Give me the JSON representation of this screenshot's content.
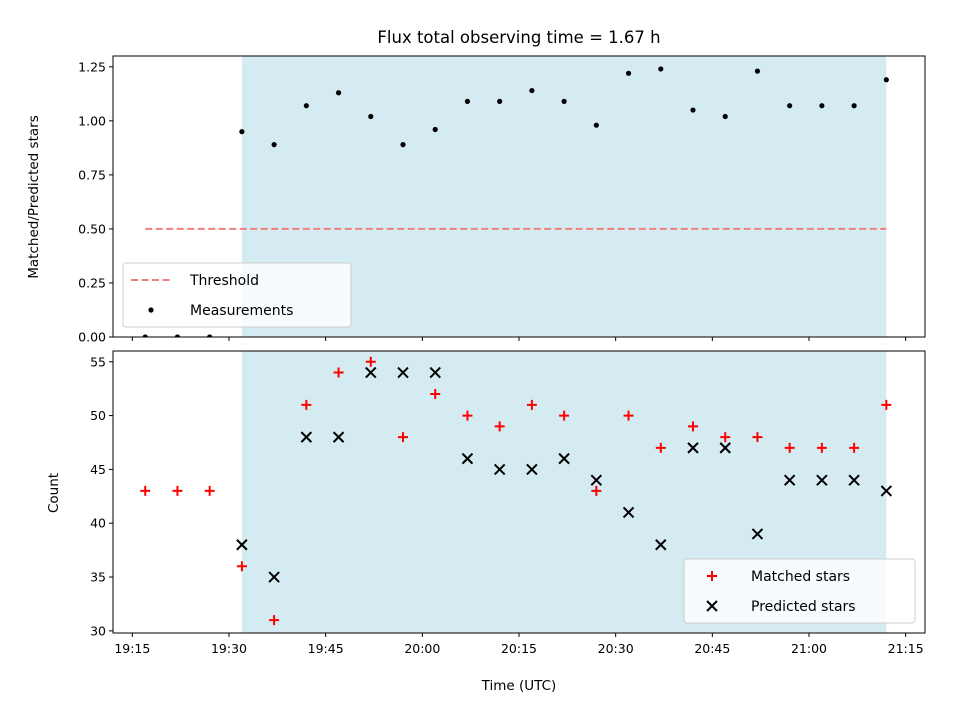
{
  "chart_data": [
    {
      "type": "scatter",
      "title": "Flux total observing time = 1.67 h",
      "xlabel": "",
      "ylabel": "Matched/Predicted stars",
      "xlim": [
        "19:12",
        "21:18"
      ],
      "ylim": [
        0,
        1.3
      ],
      "yticks": [
        "0.00",
        "0.25",
        "0.50",
        "0.75",
        "1.00",
        "1.25"
      ],
      "highlight_span": {
        "from": "19:32",
        "to": "21:12",
        "color": "#add8e6"
      },
      "threshold": {
        "name": "Threshold",
        "value": 0.5,
        "from": "19:17",
        "to": "21:12",
        "color": "#f08080"
      },
      "series": [
        {
          "name": "Measurements",
          "marker": "dot",
          "color": "#000000",
          "x": [
            "19:17",
            "19:22",
            "19:27",
            "19:32",
            "19:37",
            "19:42",
            "19:47",
            "19:52",
            "19:57",
            "20:02",
            "20:07",
            "20:12",
            "20:17",
            "20:22",
            "20:27",
            "20:32",
            "20:37",
            "20:42",
            "20:47",
            "20:52",
            "20:57",
            "21:02",
            "21:07",
            "21:12"
          ],
          "y": [
            0.0,
            0.0,
            0.0,
            0.95,
            0.89,
            1.07,
            1.13,
            1.02,
            0.89,
            0.96,
            1.09,
            1.09,
            1.14,
            1.09,
            0.98,
            1.22,
            1.24,
            1.05,
            1.02,
            1.23,
            1.07,
            1.07,
            1.07,
            1.19
          ]
        }
      ],
      "legend": {
        "position": "lower-left",
        "entries": [
          "Threshold",
          "Measurements"
        ]
      }
    },
    {
      "type": "scatter",
      "title": "",
      "xlabel": "Time (UTC)",
      "ylabel": "Count",
      "xlim": [
        "19:12",
        "21:18"
      ],
      "ylim": [
        29.8,
        56.0
      ],
      "xticks": [
        "19:15",
        "19:30",
        "19:45",
        "20:00",
        "20:15",
        "20:30",
        "20:45",
        "21:00",
        "21:15"
      ],
      "yticks": [
        "30",
        "35",
        "40",
        "45",
        "50",
        "55"
      ],
      "highlight_span": {
        "from": "19:32",
        "to": "21:12",
        "color": "#add8e6"
      },
      "series": [
        {
          "name": "Matched stars",
          "marker": "plus",
          "color": "#ff0000",
          "x": [
            "19:17",
            "19:22",
            "19:27",
            "19:32",
            "19:37",
            "19:42",
            "19:47",
            "19:52",
            "19:57",
            "20:02",
            "20:07",
            "20:12",
            "20:17",
            "20:22",
            "20:27",
            "20:32",
            "20:37",
            "20:42",
            "20:47",
            "20:52",
            "20:57",
            "21:02",
            "21:07",
            "21:12"
          ],
          "y": [
            43,
            43,
            43,
            36,
            31,
            51,
            54,
            55,
            48,
            52,
            50,
            49,
            51,
            50,
            43,
            50,
            47,
            49,
            48,
            48,
            47,
            47,
            47,
            51
          ]
        },
        {
          "name": "Predicted stars",
          "marker": "x",
          "color": "#000000",
          "x": [
            "19:32",
            "19:37",
            "19:42",
            "19:47",
            "19:52",
            "19:57",
            "20:02",
            "20:07",
            "20:12",
            "20:17",
            "20:22",
            "20:27",
            "20:32",
            "20:37",
            "20:42",
            "20:47",
            "20:52",
            "20:57",
            "21:02",
            "21:07",
            "21:12"
          ],
          "y": [
            38,
            35,
            48,
            48,
            54,
            54,
            54,
            46,
            45,
            45,
            46,
            44,
            41,
            38,
            47,
            47,
            39,
            44,
            44,
            44,
            43
          ]
        }
      ],
      "legend": {
        "position": "lower-right",
        "entries": [
          "Matched stars",
          "Predicted stars"
        ]
      }
    }
  ]
}
